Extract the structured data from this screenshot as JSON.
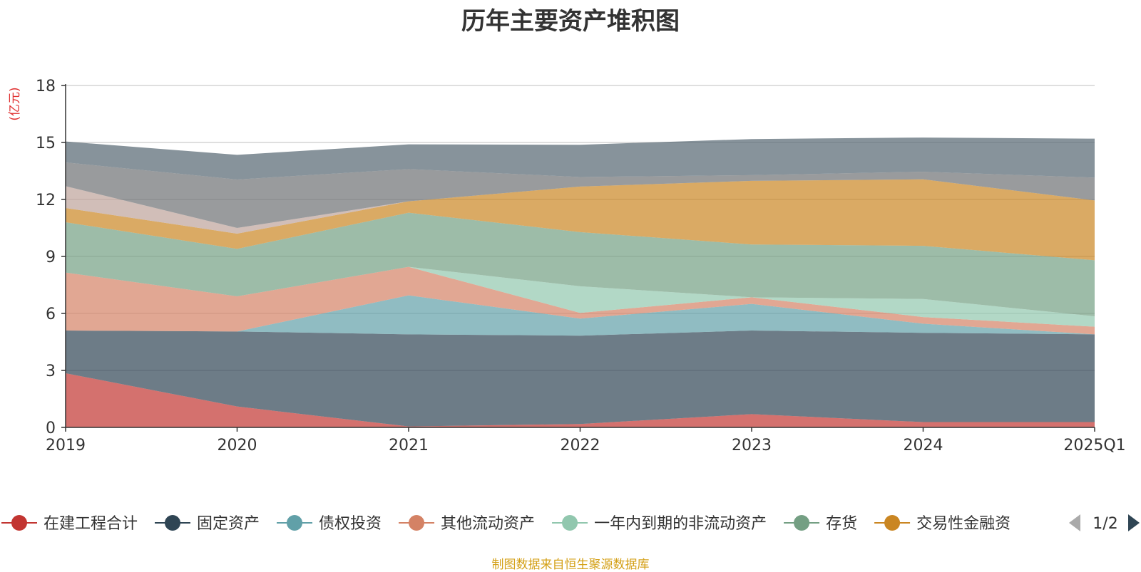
{
  "chart_data": {
    "type": "area",
    "stacked": true,
    "title": "历年主要资产堆积图",
    "ylabel": "(亿元)",
    "x": [
      "2019",
      "2020",
      "2021",
      "2022",
      "2023",
      "2024",
      "2025Q1"
    ],
    "ylim": [
      0,
      18
    ],
    "yticks": [
      0,
      3,
      6,
      9,
      12,
      15,
      18
    ],
    "grid": true,
    "legend_position": "bottom",
    "series": [
      {
        "name": "在建工程合计",
        "color": "#c23531",
        "values": [
          2.85,
          1.1,
          0.05,
          0.18,
          0.7,
          0.28,
          0.28
        ]
      },
      {
        "name": "固定资产",
        "color": "#2f4554",
        "values": [
          2.25,
          3.95,
          4.85,
          4.65,
          4.4,
          4.7,
          4.62
        ]
      },
      {
        "name": "债权投资",
        "color": "#61a0a8",
        "values": [
          0,
          0,
          2.05,
          0.9,
          1.4,
          0.48,
          0
        ]
      },
      {
        "name": "其他流动资产",
        "color": "#d48265",
        "values": [
          3.05,
          1.85,
          1.5,
          0.3,
          0.35,
          0.35,
          0.4
        ]
      },
      {
        "name": "一年内到期的非流动资产",
        "color": "#91c7ae",
        "values": [
          0,
          0,
          0,
          1.4,
          0,
          0.95,
          0.55
        ]
      },
      {
        "name": "存货",
        "color": "#749f83",
        "values": [
          2.65,
          2.5,
          2.85,
          2.85,
          2.78,
          2.8,
          2.95
        ]
      },
      {
        "name": "交易性金融资",
        "color": "#ca8622",
        "values": [
          0.75,
          0.8,
          0.6,
          2.4,
          3.35,
          3.5,
          3.15
        ]
      },
      {
        "name": "",
        "color": "#bda29a",
        "values": [
          1.15,
          0.3,
          0,
          0,
          0,
          0,
          0
        ]
      },
      {
        "name": "",
        "color": "#6e7074",
        "values": [
          1.25,
          2.55,
          1.7,
          0.5,
          0.3,
          0.4,
          1.2
        ]
      },
      {
        "name": "",
        "color": "#546570",
        "values": [
          1.1,
          1.3,
          1.3,
          1.7,
          1.9,
          1.8,
          2.05
        ]
      }
    ]
  },
  "legend": {
    "page": "1/2"
  },
  "source_note": "制图数据来自恒生聚源数据库"
}
